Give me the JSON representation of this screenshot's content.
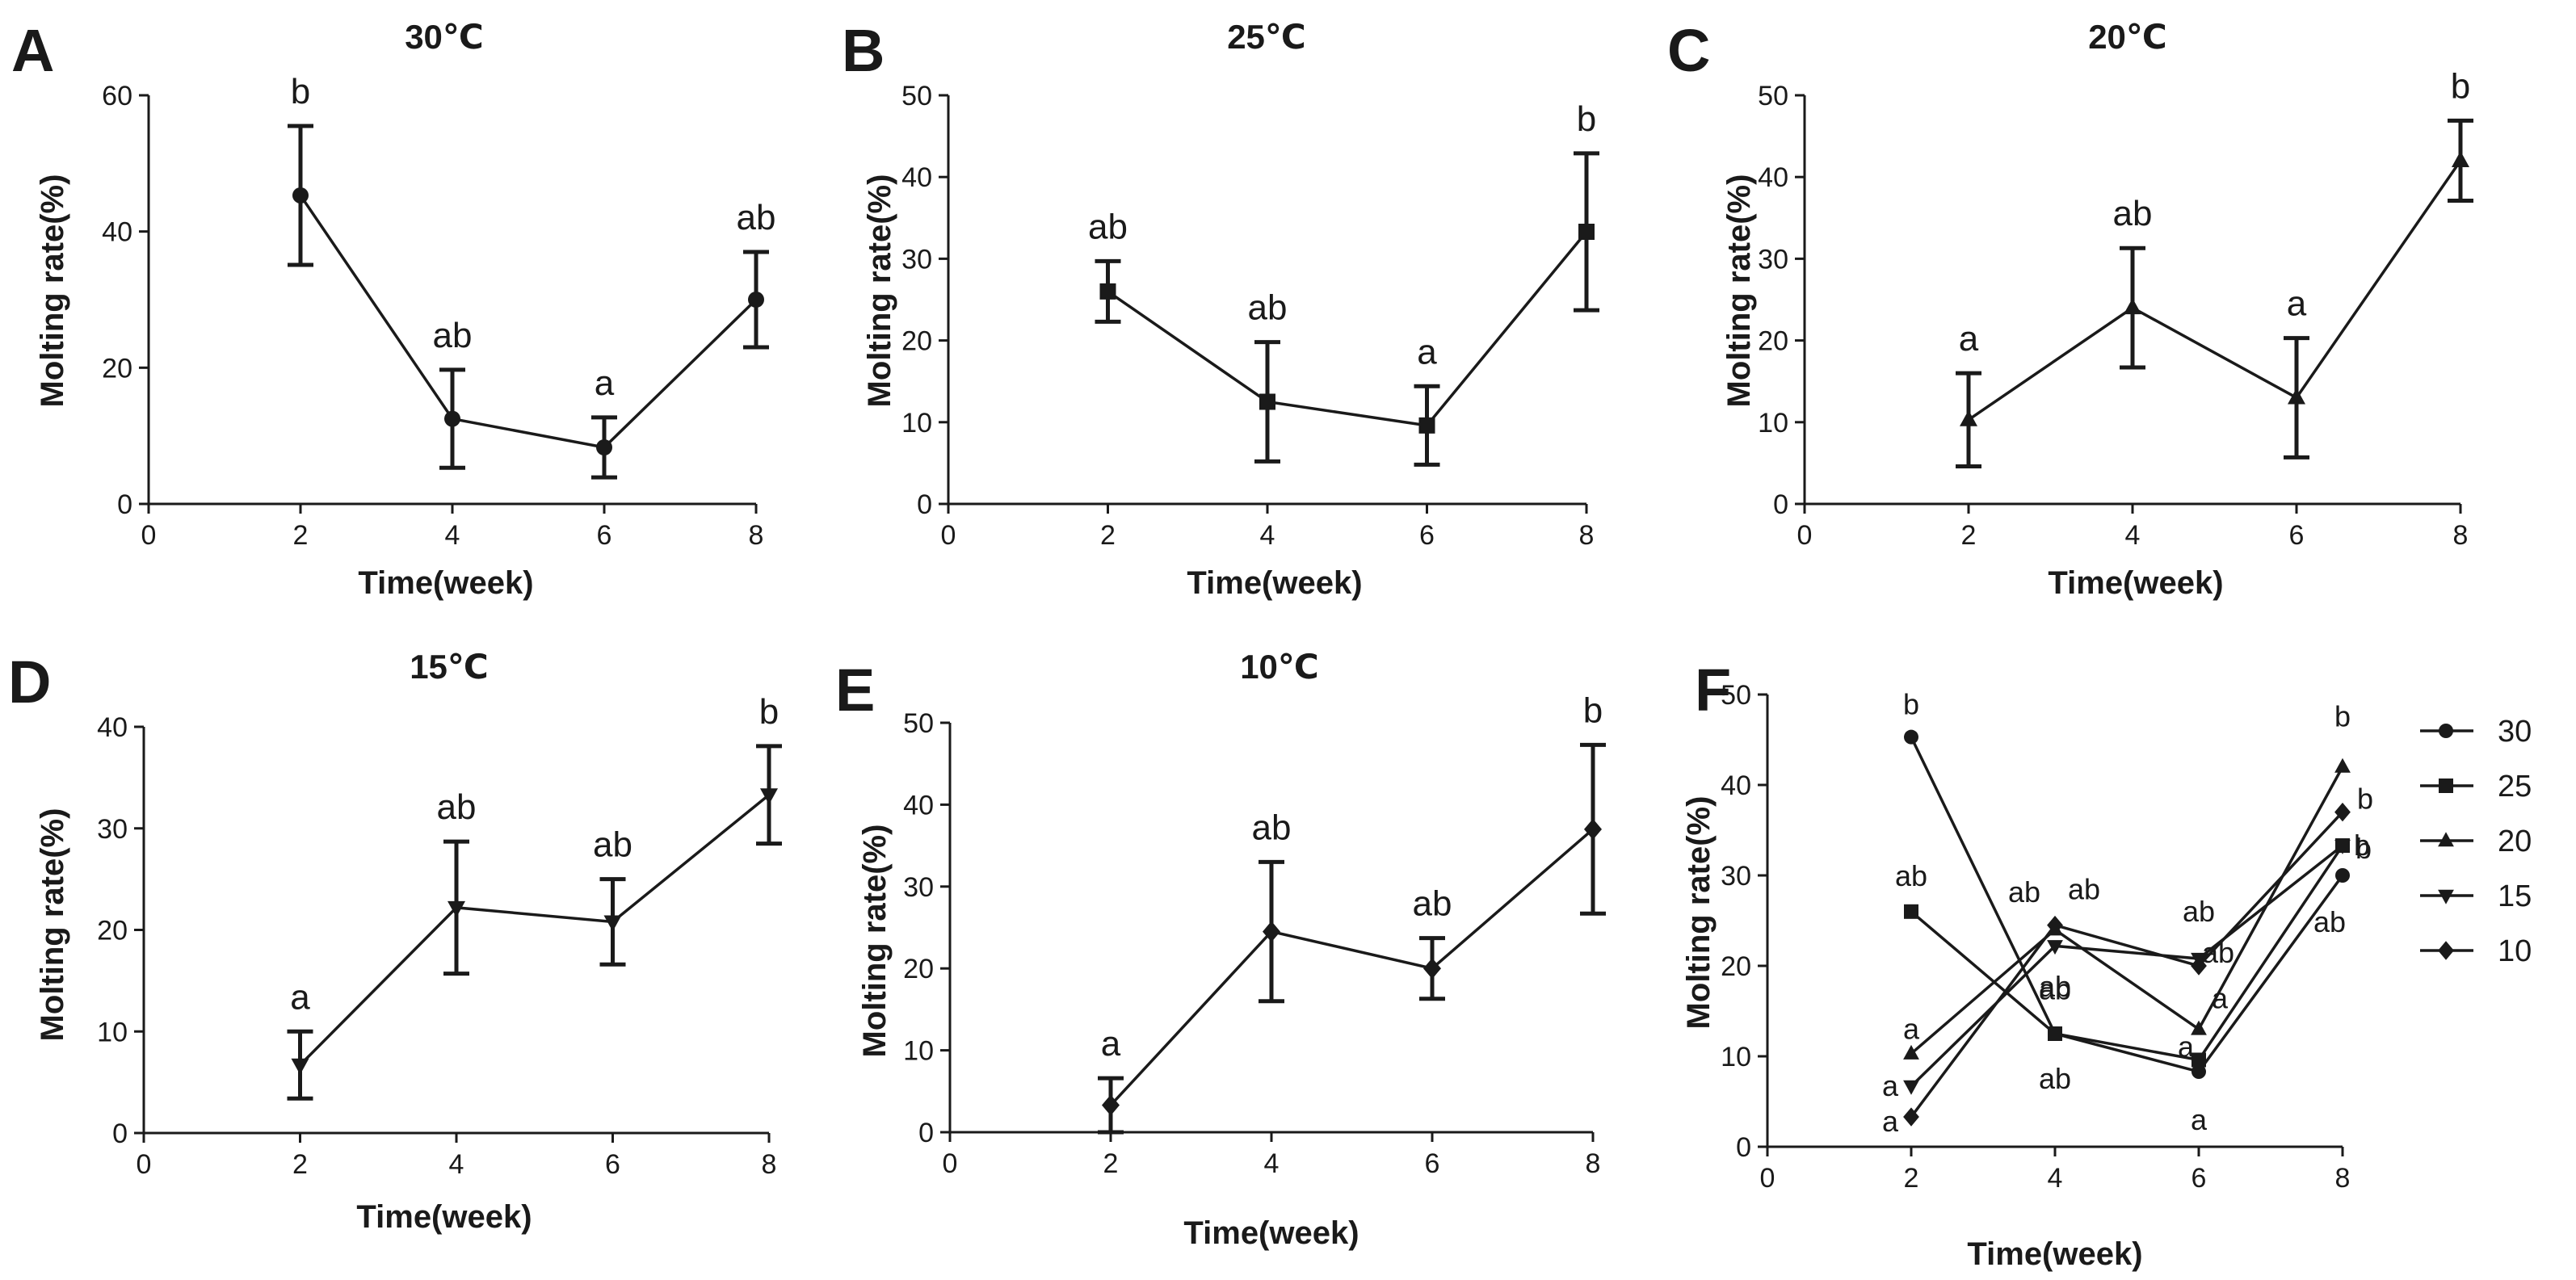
{
  "chart_data": [
    {
      "panel": "A",
      "type": "line",
      "title": "30℃",
      "xlabel": "Time(week)",
      "ylabel": "Molting rate(%)",
      "xlim": [
        0,
        8
      ],
      "xticks": [
        0,
        2,
        4,
        6,
        8
      ],
      "ylim": [
        0,
        60
      ],
      "yticks": [
        0,
        20,
        40,
        60
      ],
      "marker": "circle",
      "x": [
        2,
        4,
        6,
        8
      ],
      "y": [
        45.3,
        12.5,
        8.3,
        30
      ],
      "err": [
        10.2,
        7.2,
        4.4,
        7
      ],
      "sig": [
        "b",
        "ab",
        "a",
        "ab"
      ]
    },
    {
      "panel": "B",
      "type": "line",
      "title": "25℃",
      "xlabel": "Time(week)",
      "ylabel": "Molting rate(%)",
      "xlim": [
        0,
        8
      ],
      "xticks": [
        0,
        2,
        4,
        6,
        8
      ],
      "ylim": [
        0,
        50
      ],
      "yticks": [
        0,
        10,
        20,
        30,
        40,
        50
      ],
      "marker": "square",
      "x": [
        2,
        4,
        6,
        8
      ],
      "y": [
        26,
        12.5,
        9.6,
        33.3
      ],
      "err": [
        3.7,
        7.3,
        4.8,
        9.6
      ],
      "sig": [
        "ab",
        "ab",
        "a",
        "b"
      ]
    },
    {
      "panel": "C",
      "type": "line",
      "title": "20℃",
      "xlabel": "Time(week)",
      "ylabel": "Molting rate(%)",
      "xlim": [
        0,
        8
      ],
      "xticks": [
        0,
        2,
        4,
        6,
        8
      ],
      "ylim": [
        0,
        50
      ],
      "yticks": [
        0,
        10,
        20,
        30,
        40,
        50
      ],
      "marker": "triangle",
      "x": [
        2,
        4,
        6,
        8
      ],
      "y": [
        10.3,
        24,
        13,
        42
      ],
      "err": [
        5.7,
        7.3,
        7.3,
        4.9
      ],
      "sig": [
        "a",
        "ab",
        "a",
        "b"
      ]
    },
    {
      "panel": "D",
      "type": "line",
      "title": "15℃",
      "xlabel": "Time(week)",
      "ylabel": "Molting rate(%)",
      "xlim": [
        0,
        8
      ],
      "xticks": [
        0,
        2,
        4,
        6,
        8
      ],
      "ylim": [
        0,
        40
      ],
      "yticks": [
        0,
        10,
        20,
        30,
        40
      ],
      "marker": "triangle-down",
      "x": [
        2,
        4,
        6,
        8
      ],
      "y": [
        6.7,
        22.2,
        20.8,
        33.3
      ],
      "err": [
        3.3,
        6.5,
        4.2,
        4.8
      ],
      "sig": [
        "a",
        "ab",
        "ab",
        "b"
      ]
    },
    {
      "panel": "E",
      "type": "line",
      "title": "10℃",
      "xlabel": "Time(week)",
      "ylabel": "Molting rate(%)",
      "xlim": [
        0,
        8
      ],
      "xticks": [
        0,
        2,
        4,
        6,
        8
      ],
      "ylim": [
        0,
        50
      ],
      "yticks": [
        0,
        10,
        20,
        30,
        40,
        50
      ],
      "marker": "diamond",
      "x": [
        2,
        4,
        6,
        8
      ],
      "y": [
        3.3,
        24.5,
        20,
        37
      ],
      "err": [
        3.3,
        8.5,
        3.7,
        10.3
      ],
      "sig": [
        "a",
        "ab",
        "ab",
        "b"
      ]
    },
    {
      "panel": "F",
      "type": "line",
      "title": "",
      "xlabel": "Time(week)",
      "ylabel": "Molting rate(%)",
      "xlim": [
        0,
        8
      ],
      "xticks": [
        0,
        2,
        4,
        6,
        8
      ],
      "ylim": [
        0,
        50
      ],
      "yticks": [
        0,
        10,
        20,
        30,
        40,
        50
      ],
      "legend": "right",
      "series": [
        {
          "name": "30",
          "marker": "circle",
          "x": [
            2,
            4,
            6,
            8
          ],
          "y": [
            45.3,
            12.5,
            8.3,
            30
          ],
          "sig": [
            "b",
            "ab",
            "a",
            "ab"
          ]
        },
        {
          "name": "25",
          "marker": "square",
          "x": [
            2,
            4,
            6,
            8
          ],
          "y": [
            26,
            12.5,
            9.6,
            33.3
          ],
          "sig": [
            "ab",
            "ab",
            "a",
            "b"
          ]
        },
        {
          "name": "20",
          "marker": "triangle",
          "x": [
            2,
            4,
            6,
            8
          ],
          "y": [
            10.3,
            24,
            13,
            42
          ],
          "sig": [
            "a",
            "ab",
            "a",
            "b"
          ]
        },
        {
          "name": "15",
          "marker": "triangle-down",
          "x": [
            2,
            4,
            6,
            8
          ],
          "y": [
            6.7,
            22.2,
            20.8,
            33.3
          ],
          "sig": [
            "a",
            "ab",
            "ab",
            "b"
          ]
        },
        {
          "name": "10",
          "marker": "diamond",
          "x": [
            2,
            4,
            6,
            8
          ],
          "y": [
            3.3,
            24.5,
            20,
            37
          ],
          "sig": [
            "a",
            "ab",
            "ab",
            "b"
          ]
        }
      ]
    }
  ]
}
